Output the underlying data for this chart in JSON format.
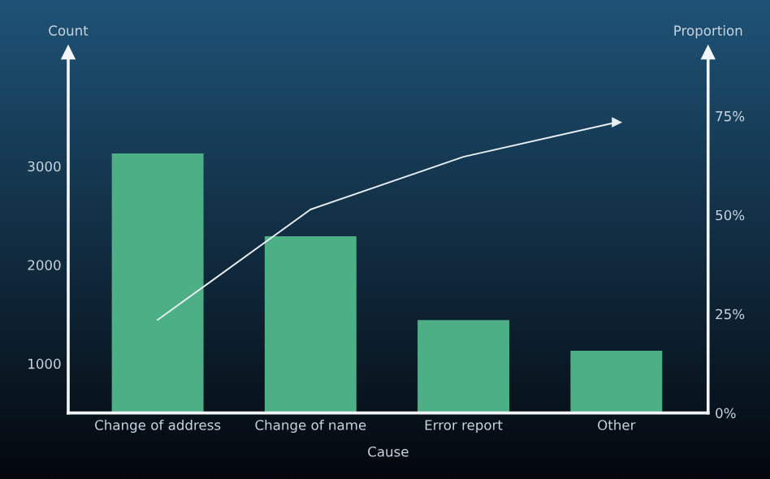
{
  "chart_data": {
    "type": "bar",
    "xlabel": "Cause",
    "ylabel": "Count",
    "y2label": "Proportion",
    "categories": [
      "Change of address",
      "Change of name",
      "Error report",
      "Other"
    ],
    "series": [
      {
        "color": "#4caf86",
        "values": [
          3130,
          2290,
          1440,
          1130
        ]
      },
      {
        "type": "line",
        "axis": "y2",
        "color": "#e8eef2",
        "values": [
          23.5,
          51.4,
          64.7,
          73.4
        ]
      }
    ],
    "ylim": [
      500,
      4150
    ],
    "yticks": [
      1000,
      2000,
      3000
    ],
    "y2lim": [
      0,
      91
    ],
    "y2ticks": [
      {
        "value": 0,
        "label": "0%"
      },
      {
        "value": 25,
        "label": "25%"
      },
      {
        "value": 50,
        "label": "50%"
      },
      {
        "value": 75,
        "label": "75%"
      }
    ],
    "grid": false
  }
}
